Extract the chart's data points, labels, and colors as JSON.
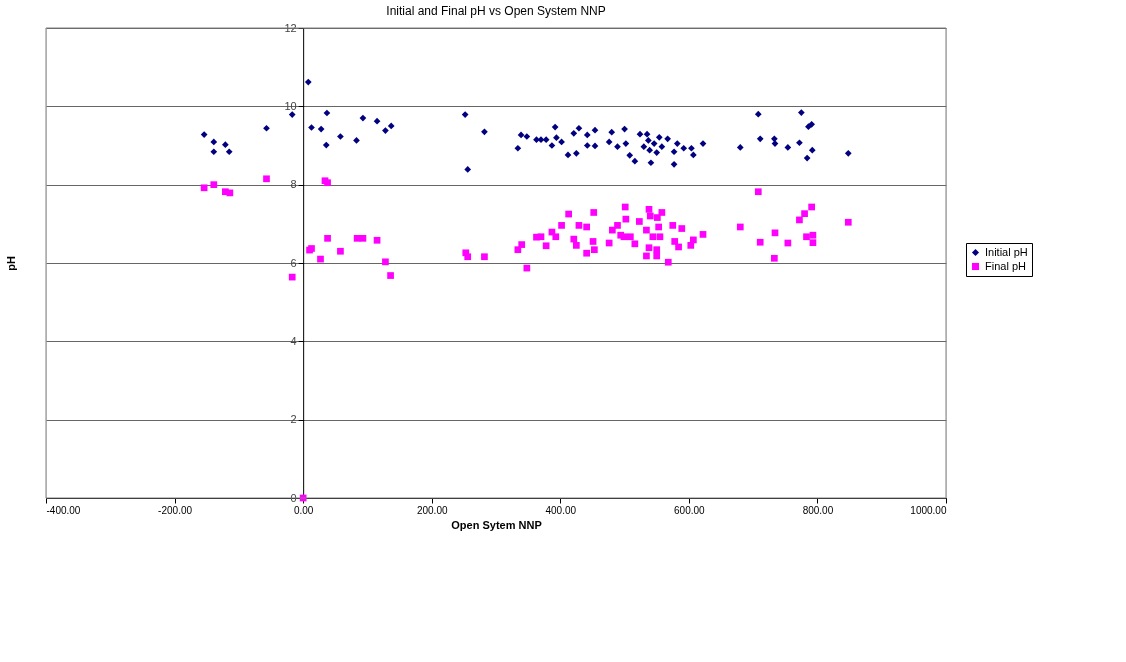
{
  "chart_data": {
    "type": "scatter",
    "title": "Initial and Final pH vs Open System NNP",
    "xlabel": "Open Sytem NNP",
    "ylabel": "pH",
    "xlim": [
      -400,
      1000
    ],
    "xticks": [
      {
        "value": -400,
        "label": "-400.00"
      },
      {
        "value": -200,
        "label": "-200.00"
      },
      {
        "value": 0,
        "label": "0.00"
      },
      {
        "value": 200,
        "label": "200.00"
      },
      {
        "value": 400,
        "label": "400.00"
      },
      {
        "value": 600,
        "label": "600.00"
      },
      {
        "value": 800,
        "label": "800.00"
      },
      {
        "value": 1000,
        "label": "1000.00"
      }
    ],
    "ylim": [
      0,
      12
    ],
    "yticks": [
      0,
      2,
      4,
      6,
      8,
      10,
      12
    ],
    "grid": "y",
    "legend": "right",
    "series": [
      {
        "name": "Initial pH",
        "color": "#000080",
        "marker": "diamond",
        "x": [
          -154,
          -139,
          -139,
          -121,
          -115,
          -57,
          -17,
          8,
          13,
          28,
          37,
          36,
          58,
          83,
          93,
          115,
          128,
          137,
          252,
          256,
          282,
          334,
          339,
          348,
          363,
          370,
          378,
          387,
          392,
          394,
          402,
          412,
          425,
          421,
          429,
          442,
          442,
          454,
          454,
          480,
          476,
          489,
          500,
          502,
          508,
          516,
          524,
          530,
          535,
          537,
          539,
          541,
          546,
          550,
          554,
          558,
          567,
          577,
          577,
          582,
          592,
          604,
          607,
          622,
          680,
          708,
          711,
          733,
          734,
          754,
          772,
          775,
          786,
          791,
          792,
          784,
          848
        ],
        "values": [
          9.28,
          9.09,
          8.84,
          9.02,
          8.84,
          9.44,
          9.79,
          10.62,
          9.46,
          9.42,
          9.83,
          9.01,
          9.23,
          9.13,
          9.7,
          9.62,
          9.38,
          9.5,
          9.79,
          8.39,
          9.35,
          8.93,
          9.27,
          9.23,
          9.15,
          9.15,
          9.15,
          9.0,
          9.47,
          9.2,
          9.09,
          8.76,
          8.8,
          9.31,
          9.44,
          9.27,
          9.0,
          9.39,
          8.99,
          9.34,
          9.09,
          8.97,
          9.42,
          9.05,
          8.75,
          8.6,
          9.29,
          8.97,
          9.29,
          9.13,
          8.88,
          8.56,
          9.05,
          8.82,
          9.21,
          8.97,
          9.17,
          8.84,
          8.52,
          9.05,
          8.93,
          8.93,
          8.76,
          9.05,
          8.95,
          9.8,
          9.17,
          9.17,
          9.05,
          8.95,
          9.07,
          9.84,
          9.48,
          9.54,
          8.88,
          8.68,
          8.8
        ]
      },
      {
        "name": "Final pH",
        "color": "#ff00ff",
        "marker": "square",
        "x": [
          -154,
          -139,
          -121,
          -114,
          -57,
          34,
          38,
          -17,
          0,
          10,
          13,
          27,
          38,
          58,
          84,
          93,
          115,
          128,
          136,
          253,
          256,
          282,
          334,
          340,
          348,
          363,
          370,
          378,
          387,
          393,
          402,
          413,
          421,
          425,
          429,
          441,
          441,
          452,
          451,
          453,
          476,
          481,
          489,
          494,
          501,
          502,
          499,
          509,
          516,
          523,
          534,
          538,
          540,
          534,
          538,
          544,
          550,
          550,
          553,
          555,
          558,
          551,
          568,
          575,
          578,
          584,
          589,
          603,
          607,
          622,
          680,
          708,
          711,
          734,
          733,
          754,
          772,
          780,
          791,
          783,
          793,
          793,
          848
        ],
        "values": [
          7.92,
          8.0,
          7.82,
          7.79,
          8.15,
          8.1,
          8.05,
          5.64,
          0,
          6.33,
          6.37,
          6.1,
          6.63,
          6.3,
          6.63,
          6.63,
          6.58,
          6.03,
          5.68,
          6.26,
          6.16,
          6.16,
          6.34,
          6.47,
          5.87,
          6.66,
          6.67,
          6.44,
          6.79,
          6.67,
          6.96,
          7.25,
          6.61,
          6.45,
          6.96,
          6.92,
          6.25,
          7.29,
          6.55,
          6.34,
          6.51,
          6.84,
          6.96,
          6.71,
          7.43,
          7.12,
          6.67,
          6.67,
          6.49,
          7.06,
          6.84,
          7.37,
          7.2,
          6.18,
          6.39,
          6.67,
          6.18,
          6.34,
          6.92,
          6.67,
          7.29,
          7.16,
          6.02,
          6.96,
          6.55,
          6.41,
          6.88,
          6.45,
          6.59,
          6.73,
          6.92,
          7.82,
          6.53,
          6.77,
          6.12,
          6.51,
          7.1,
          7.26,
          7.43,
          6.67,
          6.71,
          6.52,
          7.04
        ]
      }
    ]
  }
}
